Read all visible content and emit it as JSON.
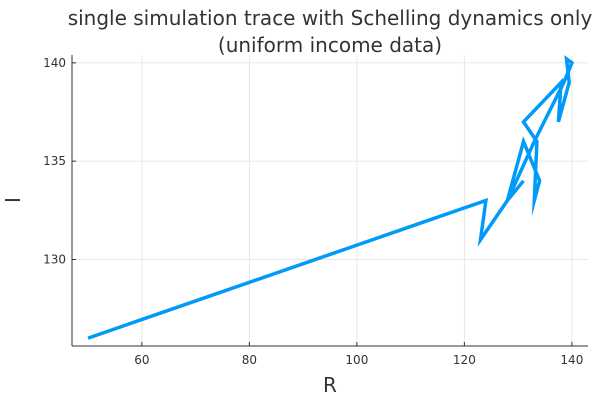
{
  "chart_data": {
    "type": "line",
    "title_line1": "single simulation trace with Schelling dynamics only",
    "title_line2": "(uniform income data)",
    "xlabel": "R",
    "ylabel": "I",
    "xlim": [
      47,
      143
    ],
    "ylim": [
      125.6,
      140.4
    ],
    "xticks": [
      60,
      80,
      100,
      120,
      140
    ],
    "yticks": [
      130,
      135,
      140
    ],
    "grid": true,
    "legend": "none",
    "series": [
      {
        "color": "#009AF9",
        "x": [
          50,
          124,
          123,
          128,
          133,
          138.5,
          140,
          139,
          139.5,
          137.5,
          138,
          131,
          133.5,
          133,
          134,
          131,
          128,
          131
        ],
        "y": [
          126,
          133,
          131,
          133,
          136,
          139,
          140,
          140.2,
          139,
          137,
          139,
          137,
          136,
          133,
          134,
          136,
          133,
          134
        ]
      }
    ]
  }
}
